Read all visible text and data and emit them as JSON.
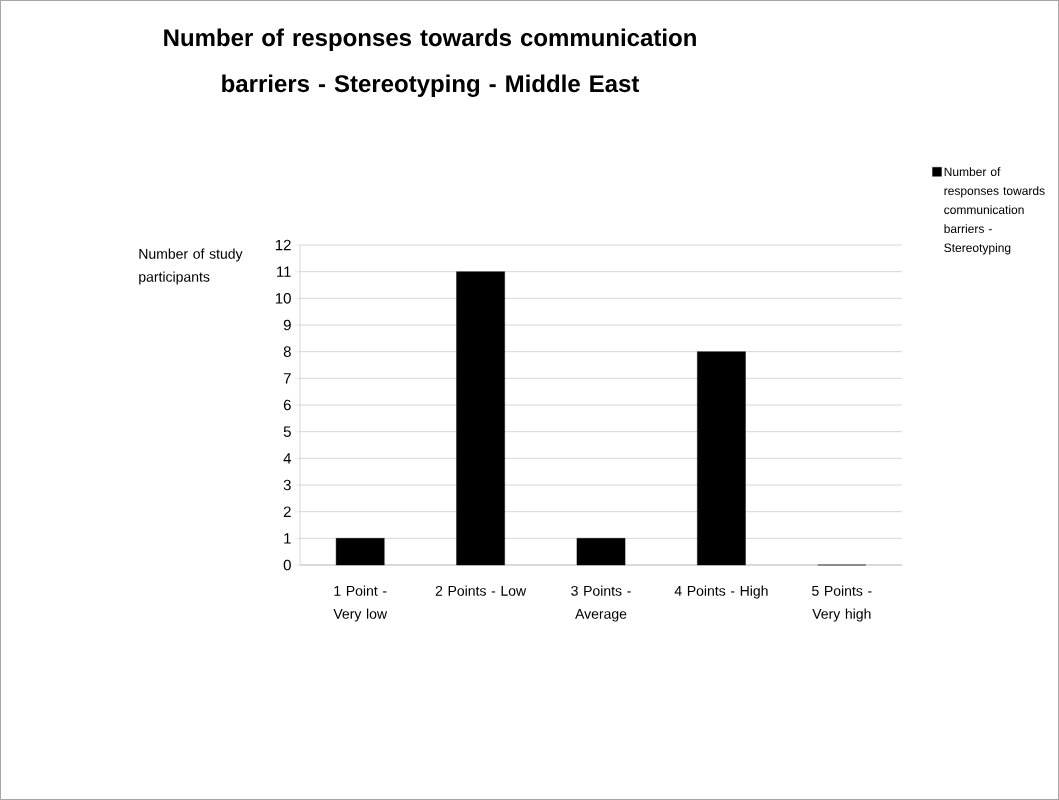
{
  "chart_data": {
    "type": "bar",
    "title": "Number of responses towards communication barriers - Stereotyping - Middle East",
    "ylabel": "Number of study participants",
    "categories": [
      "1 Point - Very low",
      "2 Points - Low",
      "3 Points - Average",
      "4 Points - High",
      "5 Points - Very high"
    ],
    "series": [
      {
        "name": "Number of responses towards communication barriers - Stereotyping",
        "color": "#000000",
        "values": [
          1,
          11,
          1,
          8,
          0
        ]
      }
    ],
    "ylim": [
      0,
      12
    ],
    "yticks": [
      0,
      1,
      2,
      3,
      4,
      5,
      6,
      7,
      8,
      9,
      10,
      11,
      12
    ],
    "grid": "y",
    "legend": "top right"
  }
}
